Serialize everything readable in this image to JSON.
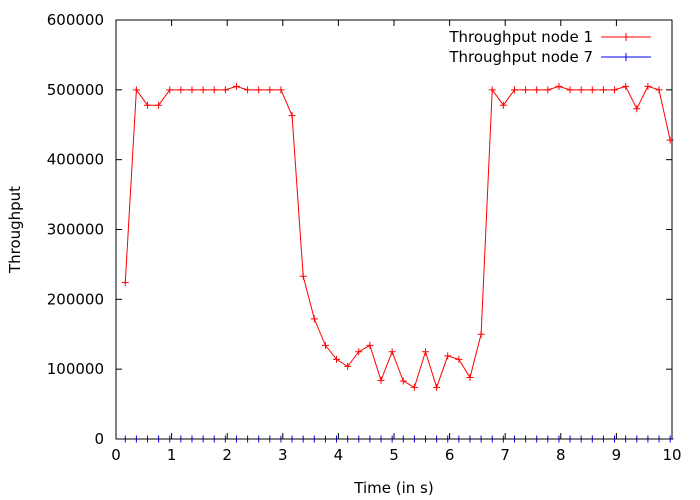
{
  "chart_data": {
    "type": "line",
    "xlabel": "Time (in s)",
    "ylabel": "Throughput",
    "xlim": [
      0,
      10
    ],
    "ylim": [
      0,
      600000
    ],
    "xticks": [
      0,
      1,
      2,
      3,
      4,
      5,
      6,
      7,
      8,
      9,
      10
    ],
    "yticks": [
      0,
      100000,
      200000,
      300000,
      400000,
      500000,
      600000
    ],
    "grid": false,
    "legend_position": "top-right",
    "series": [
      {
        "name": "Throughput node 1",
        "color": "#ff0000",
        "marker": "plus",
        "x": [
          0.1667,
          0.3667,
          0.5667,
          0.7667,
          0.9667,
          1.1667,
          1.3667,
          1.5667,
          1.7667,
          1.9667,
          2.1667,
          2.3667,
          2.5667,
          2.7667,
          2.9667,
          3.1667,
          3.3667,
          3.5667,
          3.7667,
          3.9667,
          4.1667,
          4.3667,
          4.5667,
          4.7667,
          4.9667,
          5.1667,
          5.3667,
          5.5667,
          5.7667,
          5.9667,
          6.1667,
          6.3667,
          6.5667,
          6.7667,
          6.9667,
          7.1667,
          7.3667,
          7.5667,
          7.7667,
          7.9667,
          8.1667,
          8.3667,
          8.5667,
          8.7667,
          8.9667,
          9.1667,
          9.3667,
          9.5667,
          9.7667,
          9.9667
        ],
        "y": [
          224000,
          500000,
          478000,
          478000,
          500000,
          500000,
          500000,
          500000,
          500000,
          500000,
          505000,
          500000,
          500000,
          500000,
          500000,
          463000,
          233000,
          172000,
          134000,
          114000,
          104000,
          125000,
          134000,
          84000,
          125000,
          83000,
          74000,
          125000,
          74000,
          119000,
          114000,
          88000,
          150000,
          500000,
          478000,
          500000,
          500000,
          500000,
          500000,
          505000,
          500000,
          500000,
          500000,
          500000,
          500000,
          505000,
          473000,
          505000,
          500000,
          428000
        ]
      },
      {
        "name": "Throughput node 7",
        "color": "#0000ff",
        "marker": "plus",
        "x": [
          0.1667,
          0.3667,
          0.5667,
          0.7667,
          0.9667,
          1.1667,
          1.3667,
          1.5667,
          1.7667,
          1.9667,
          2.1667,
          2.3667,
          2.5667,
          2.7667,
          2.9667,
          3.1667,
          3.3667,
          3.5667,
          3.7667,
          3.9667,
          4.1667,
          4.3667,
          4.5667,
          4.7667,
          4.9667,
          5.1667,
          5.3667,
          5.5667,
          5.7667,
          5.9667,
          6.1667,
          6.3667,
          6.5667,
          6.7667,
          6.9667,
          7.1667,
          7.3667,
          7.5667,
          7.7667,
          7.9667,
          8.1667,
          8.3667,
          8.5667,
          8.7667,
          8.9667,
          9.1667,
          9.3667,
          9.5667,
          9.7667,
          9.9667
        ],
        "y": [
          0,
          0,
          0,
          0,
          0,
          0,
          0,
          0,
          0,
          0,
          0,
          0,
          0,
          0,
          0,
          0,
          0,
          0,
          0,
          0,
          0,
          0,
          0,
          0,
          0,
          0,
          0,
          0,
          0,
          0,
          0,
          0,
          0,
          0,
          0,
          0,
          0,
          0,
          0,
          0,
          0,
          0,
          0,
          0,
          0,
          0,
          0,
          0,
          0,
          0
        ]
      }
    ]
  }
}
